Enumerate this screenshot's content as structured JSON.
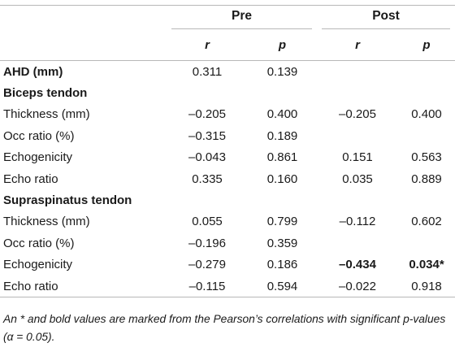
{
  "table": {
    "group_pre": "Pre",
    "group_post": "Post",
    "sub_r1": "r",
    "sub_p1": "p",
    "sub_r2": "r",
    "sub_p2": "p",
    "rows": [
      {
        "label": "AHD (mm)",
        "bold": true,
        "pre_r": "0.311",
        "pre_p": "0.139",
        "post_r": "",
        "post_p": ""
      },
      {
        "label": "Biceps tendon",
        "bold": true,
        "pre_r": "",
        "pre_p": "",
        "post_r": "",
        "post_p": ""
      },
      {
        "label": "Thickness (mm)",
        "bold": false,
        "pre_r": "–0.205",
        "pre_p": "0.400",
        "post_r": "–0.205",
        "post_p": "0.400"
      },
      {
        "label": "Occ ratio (%)",
        "bold": false,
        "pre_r": "–0.315",
        "pre_p": "0.189",
        "post_r": "",
        "post_p": ""
      },
      {
        "label": "Echogenicity",
        "bold": false,
        "pre_r": "–0.043",
        "pre_p": "0.861",
        "post_r": "0.151",
        "post_p": "0.563"
      },
      {
        "label": "Echo ratio",
        "bold": false,
        "pre_r": "0.335",
        "pre_p": "0.160",
        "post_r": "0.035",
        "post_p": "0.889"
      },
      {
        "label": "Supraspinatus tendon",
        "bold": true,
        "pre_r": "",
        "pre_p": "",
        "post_r": "",
        "post_p": ""
      },
      {
        "label": "Thickness (mm)",
        "bold": false,
        "pre_r": "0.055",
        "pre_p": "0.799",
        "post_r": "–0.112",
        "post_p": "0.602"
      },
      {
        "label": "Occ ratio (%)",
        "bold": false,
        "pre_r": "–0.196",
        "pre_p": "0.359",
        "post_r": "",
        "post_p": ""
      },
      {
        "label": "Echogenicity",
        "bold": false,
        "pre_r": "–0.279",
        "pre_p": "0.186",
        "post_r": "–0.434",
        "post_p": "0.034*",
        "post_bold": true
      },
      {
        "label": "Echo ratio",
        "bold": false,
        "pre_r": "–0.115",
        "pre_p": "0.594",
        "post_r": "–0.022",
        "post_p": "0.918"
      }
    ]
  },
  "footnote": "An * and bold values are marked from the Pearson’s correlations with significant p-values (α = 0.05)."
}
